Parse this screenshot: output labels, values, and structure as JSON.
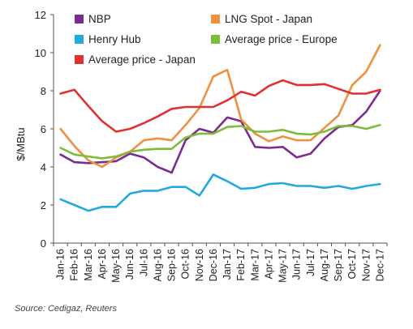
{
  "chart_data": {
    "type": "line",
    "title": "",
    "xlabel": "",
    "ylabel": "$/MBtu",
    "ylim": [
      0,
      12
    ],
    "yticks": [
      0,
      2,
      4,
      6,
      8,
      10,
      12
    ],
    "grid": false,
    "legend_position": "top",
    "categories": [
      "Jan-16",
      "Feb-16",
      "Mar-16",
      "Apr-16",
      "May-16",
      "Jun-16",
      "Jul-16",
      "Aug-16",
      "Sep-16",
      "Oct-16",
      "Nov-16",
      "Dec-16",
      "Jan-17",
      "Feb-17",
      "Mar-17",
      "Apr-17",
      "May-17",
      "Jun-17",
      "Jul-17",
      "Aug-17",
      "Sep-17",
      "Oct-17",
      "Nov-17",
      "Dec-17"
    ],
    "series": [
      {
        "name": "NBP",
        "color": "#7b2c8f",
        "values": [
          4.65,
          4.25,
          4.2,
          4.25,
          4.3,
          4.7,
          4.5,
          4.0,
          3.7,
          5.4,
          6.0,
          5.8,
          6.6,
          6.4,
          5.05,
          5.0,
          5.05,
          4.5,
          4.7,
          5.5,
          6.1,
          6.2,
          6.9,
          8.0
        ]
      },
      {
        "name": "LNG Spot - Japan",
        "color": "#f0913f",
        "values": [
          6.0,
          5.1,
          4.35,
          4.0,
          4.5,
          4.8,
          5.4,
          5.5,
          5.4,
          6.2,
          7.1,
          8.75,
          9.1,
          6.5,
          5.75,
          5.35,
          5.6,
          5.4,
          5.4,
          6.05,
          6.7,
          8.3,
          9.0,
          10.4
        ]
      },
      {
        "name": "Henry Hub",
        "color": "#21a9e0",
        "values": [
          2.3,
          2.0,
          1.7,
          1.9,
          1.9,
          2.6,
          2.75,
          2.75,
          2.95,
          2.95,
          2.5,
          3.6,
          3.25,
          2.85,
          2.9,
          3.1,
          3.15,
          3.0,
          3.0,
          2.9,
          3.0,
          2.85,
          3.0,
          3.1
        ]
      },
      {
        "name": "Average price - Europe",
        "color": "#7cbd3c",
        "values": [
          5.0,
          4.65,
          4.55,
          4.45,
          4.55,
          4.8,
          4.9,
          4.95,
          4.95,
          5.55,
          5.75,
          5.75,
          6.1,
          6.15,
          5.85,
          5.85,
          5.95,
          5.75,
          5.7,
          5.85,
          6.15,
          6.15,
          6.0,
          6.2
        ]
      },
      {
        "name": "Average price - Japan",
        "color": "#e0312e",
        "values": [
          7.85,
          8.05,
          7.2,
          6.4,
          5.85,
          6.0,
          6.3,
          6.65,
          7.05,
          7.15,
          7.15,
          7.15,
          7.5,
          7.95,
          7.75,
          8.25,
          8.55,
          8.3,
          8.3,
          8.35,
          8.1,
          7.85,
          7.85,
          8.05
        ]
      }
    ]
  },
  "source_note": "Source: Cedigaz, Reuters"
}
